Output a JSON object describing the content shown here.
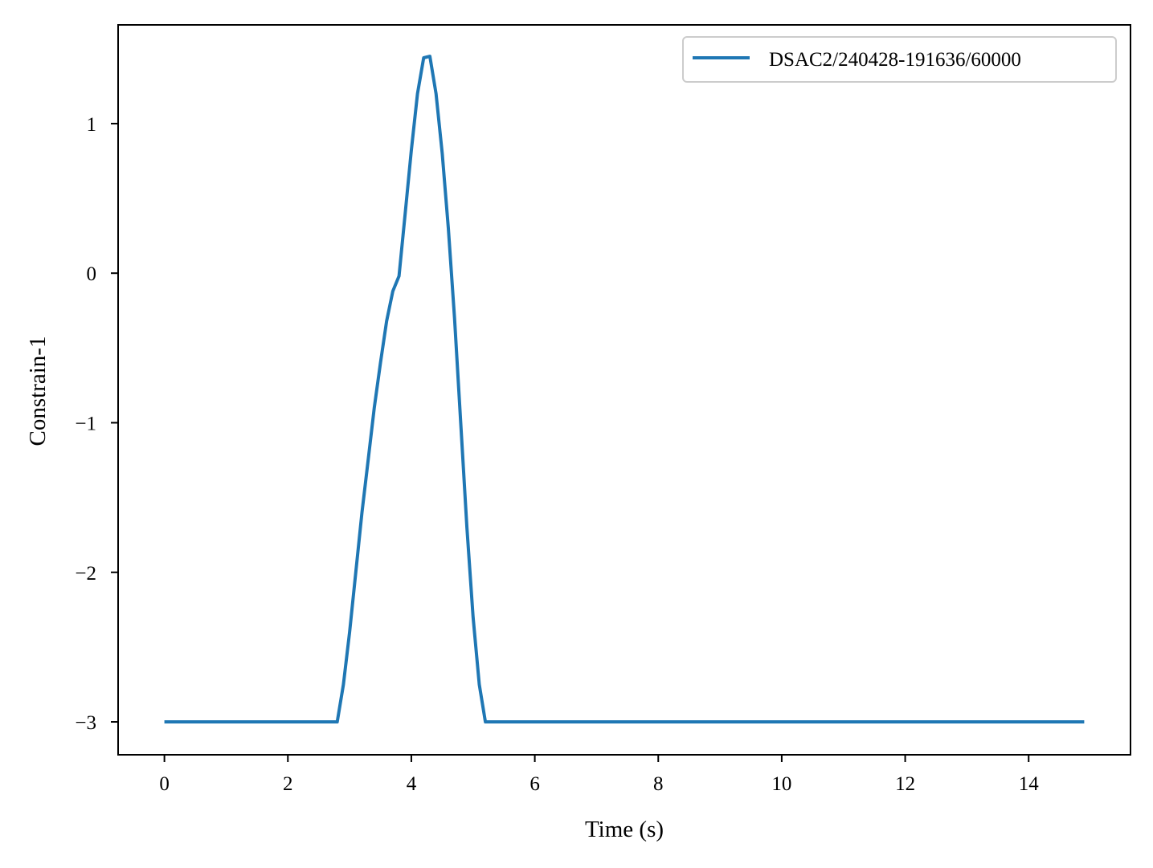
{
  "chart_data": {
    "type": "line",
    "title": "",
    "xlabel": "Time (s)",
    "ylabel": "Constrain-1",
    "xlim": [
      -0.75,
      15.65
    ],
    "ylim": [
      -3.22,
      1.66
    ],
    "xticks": [
      0,
      2,
      4,
      6,
      8,
      10,
      12,
      14
    ],
    "xtick_labels": [
      "0",
      "2",
      "4",
      "6",
      "8",
      "10",
      "12",
      "14"
    ],
    "yticks": [
      1,
      0,
      -1,
      -2,
      -3
    ],
    "ytick_labels": [
      "1",
      "0",
      "−1",
      "−2",
      "−3"
    ],
    "grid": false,
    "legend": {
      "position": "top-right"
    },
    "series": [
      {
        "name": "DSAC2/240428-191636/60000",
        "color": "#1f77b4",
        "x": [
          0,
          2.8,
          2.9,
          3.0,
          3.1,
          3.2,
          3.3,
          3.4,
          3.5,
          3.6,
          3.7,
          3.8,
          3.9,
          4.0,
          4.1,
          4.2,
          4.3,
          4.4,
          4.5,
          4.6,
          4.7,
          4.8,
          4.9,
          5.0,
          5.1,
          5.2,
          14.9
        ],
        "y": [
          -3.0,
          -3.0,
          -2.75,
          -2.4,
          -2.0,
          -1.6,
          -1.25,
          -0.9,
          -0.6,
          -0.32,
          -0.12,
          -0.02,
          0.4,
          0.82,
          1.2,
          1.44,
          1.45,
          1.2,
          0.8,
          0.3,
          -0.3,
          -1.0,
          -1.7,
          -2.3,
          -2.75,
          -3.0,
          -3.0
        ]
      }
    ]
  }
}
